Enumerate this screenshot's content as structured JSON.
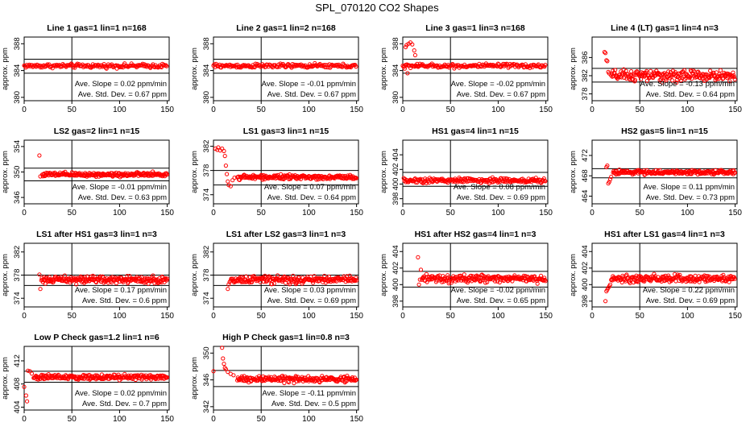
{
  "figure": {
    "title": "SPL_070120  CO2 Shapes"
  },
  "chart_data": [
    {
      "type": "scatter",
      "title": "Line 1 gas=1 lin=1 n=168",
      "ylabel": "approx. ppm",
      "xlim": [
        0,
        152
      ],
      "xticks": [
        0,
        50,
        100,
        150
      ],
      "ylim": [
        379.5,
        389
      ],
      "yticks": [
        380,
        384,
        388
      ],
      "hlines": [
        385.7,
        383.6
      ],
      "vline": 50,
      "start": 0,
      "end": 150,
      "step": 0.9,
      "base": 384.7,
      "noise": 0.15,
      "init": [],
      "slope_text": "Ave. Slope = 0.02  ppm/min",
      "std_text": "Ave. Std. Dev. = 0.67 ppm"
    },
    {
      "type": "scatter",
      "title": "Line 2 gas=1 lin=2 n=168",
      "ylabel": "approx. ppm",
      "xlim": [
        0,
        152
      ],
      "xticks": [
        0,
        50,
        100,
        150
      ],
      "ylim": [
        379.5,
        389
      ],
      "yticks": [
        380,
        384,
        388
      ],
      "hlines": [
        385.7,
        383.6
      ],
      "vline": 50,
      "start": 0,
      "end": 150,
      "step": 0.9,
      "base": 384.7,
      "noise": 0.15,
      "init": [],
      "slope_text": "Ave. Slope = -0.01  ppm/min",
      "std_text": "Ave. Std. Dev. = 0.67 ppm"
    },
    {
      "type": "scatter",
      "title": "Line 3 gas=1 lin=3 n=168",
      "ylabel": "approx. ppm",
      "xlim": [
        0,
        152
      ],
      "xticks": [
        0,
        50,
        100,
        150
      ],
      "ylim": [
        379.5,
        389
      ],
      "yticks": [
        380,
        384,
        388
      ],
      "hlines": [
        385.7,
        383.6
      ],
      "vline": 50,
      "start": 0,
      "end": 150,
      "step": 0.9,
      "base": 384.7,
      "noise": 0.15,
      "init": [
        [
          2,
          384.3
        ],
        [
          3,
          387.5
        ],
        [
          4,
          387.8
        ],
        [
          5,
          383.6
        ],
        [
          6,
          388.0
        ],
        [
          8,
          388.2
        ],
        [
          10,
          387.9
        ],
        [
          12,
          387.0
        ],
        [
          13,
          386.3
        ],
        [
          15,
          385.0
        ]
      ],
      "slope_text": "Ave. Slope = -0.02  ppm/min",
      "std_text": "Ave. Std. Dev. = 0.67 ppm"
    },
    {
      "type": "scatter",
      "title": "Line 4 (LT) gas=1 lin=4 n=3",
      "ylabel": "approx. ppm",
      "xlim": [
        0,
        152
      ],
      "xticks": [
        0,
        50,
        100,
        150
      ],
      "ylim": [
        376.5,
        390.5
      ],
      "yticks": [
        378,
        382,
        386
      ],
      "hlines": [
        383.6,
        380.6
      ],
      "vline": 50,
      "start": 20,
      "end": 150,
      "step": 0.6,
      "base": 382.0,
      "noise": 0.6,
      "init": [
        [
          13,
          387.2
        ],
        [
          14,
          387.0
        ],
        [
          15,
          385.4
        ],
        [
          16,
          385.2
        ],
        [
          17,
          382.8
        ],
        [
          18,
          382.5
        ]
      ],
      "slope_text": "Ave. Slope = -0.13  ppm/min",
      "std_text": "Ave. Std. Dev. = 0.64 ppm"
    },
    {
      "type": "scatter",
      "title": "LS2 gas=2 lin=1 n=15",
      "ylabel": "approx. ppm",
      "xlim": [
        0,
        152
      ],
      "xticks": [
        0,
        50,
        100,
        150
      ],
      "ylim": [
        345,
        355
      ],
      "yticks": [
        346,
        350,
        354
      ],
      "hlines": [
        350.6,
        348.6
      ],
      "vline": 50,
      "start": 19,
      "end": 150,
      "step": 0.6,
      "base": 349.6,
      "noise": 0.17,
      "init": [
        [
          16,
          352.6
        ],
        [
          17,
          349.3
        ]
      ],
      "slope_text": "Ave. Slope = -0.01  ppm/min",
      "std_text": "Ave. Std. Dev. = 0.63 ppm"
    },
    {
      "type": "scatter",
      "title": "LS1 gas=3 lin=1 n=15",
      "ylabel": "approx. ppm",
      "xlim": [
        0,
        152
      ],
      "xticks": [
        0,
        50,
        100,
        150
      ],
      "ylim": [
        372.5,
        383
      ],
      "yticks": [
        374,
        378,
        382
      ],
      "hlines": [
        378.0,
        375.6
      ],
      "vline": 50,
      "start": 25,
      "end": 150,
      "step": 0.6,
      "base": 376.9,
      "noise": 0.18,
      "init": [
        [
          2,
          381.6
        ],
        [
          4,
          381.4
        ],
        [
          5,
          381.8
        ],
        [
          7,
          381.3
        ],
        [
          9,
          381.6
        ],
        [
          11,
          381.2
        ],
        [
          12,
          380.4
        ],
        [
          13,
          378.8
        ],
        [
          14,
          377.4
        ],
        [
          15,
          376.2
        ],
        [
          16,
          375.6
        ],
        [
          18,
          375.4
        ],
        [
          20,
          376.4
        ],
        [
          22,
          376.8
        ]
      ],
      "slope_text": "Ave. Slope = 0.07  ppm/min",
      "std_text": "Ave. Std. Dev. = 0.64 ppm"
    },
    {
      "type": "scatter",
      "title": "HS1 gas=4 lin=1 n=15",
      "ylabel": "approx. ppm",
      "xlim": [
        0,
        152
      ],
      "xticks": [
        0,
        50,
        100,
        150
      ],
      "ylim": [
        397.3,
        406
      ],
      "yticks": [
        398,
        400,
        402,
        404
      ],
      "hlines": [
        401.6,
        399.7
      ],
      "vline": 50,
      "start": 1,
      "end": 150,
      "step": 0.7,
      "base": 400.5,
      "noise": 0.17,
      "init": [],
      "slope_text": "Ave. Slope = 0.08  ppm/min",
      "std_text": "Ave. Std. Dev. = 0.69 ppm"
    },
    {
      "type": "scatter",
      "title": "HS2 gas=5 lin=1 n=15",
      "ylabel": "approx. ppm",
      "xlim": [
        0,
        152
      ],
      "xticks": [
        0,
        50,
        100,
        150
      ],
      "ylim": [
        462.5,
        475
      ],
      "yticks": [
        464,
        468,
        472
      ],
      "hlines": [
        469.4,
        467.6
      ],
      "vline": 50,
      "start": 22,
      "end": 150,
      "step": 0.6,
      "base": 468.7,
      "noise": 0.2,
      "init": [
        [
          15,
          469.7
        ],
        [
          16,
          470.0
        ],
        [
          17,
          466.5
        ],
        [
          18,
          466.8
        ],
        [
          19,
          467.3
        ],
        [
          20,
          467.8
        ]
      ],
      "slope_text": "Ave. Slope = 0.11  ppm/min",
      "std_text": "Ave. Std. Dev. = 0.73 ppm"
    },
    {
      "type": "scatter",
      "title": "LS1 after HS1 gas=3 lin=1 n=3",
      "ylabel": "approx. ppm",
      "xlim": [
        0,
        152
      ],
      "xticks": [
        0,
        50,
        100,
        150
      ],
      "ylim": [
        372.5,
        383.5
      ],
      "yticks": [
        374,
        378,
        382
      ],
      "hlines": [
        378.0,
        376.2
      ],
      "vline": 50,
      "start": 18,
      "end": 150,
      "step": 0.6,
      "base": 377.2,
      "noise": 0.3,
      "init": [
        [
          16,
          378.1
        ],
        [
          17,
          375.6
        ]
      ],
      "slope_text": "Ave. Slope = 0.17  ppm/min",
      "std_text": "Ave. Std. Dev. = 0.6 ppm"
    },
    {
      "type": "scatter",
      "title": "LS1 after LS2 gas=3 lin=1 n=3",
      "ylabel": "approx. ppm",
      "xlim": [
        0,
        152
      ],
      "xticks": [
        0,
        50,
        100,
        150
      ],
      "ylim": [
        372.5,
        383.5
      ],
      "yticks": [
        374,
        378,
        382
      ],
      "hlines": [
        378.0,
        376.2
      ],
      "vline": 50,
      "start": 18,
      "end": 150,
      "step": 0.6,
      "base": 377.2,
      "noise": 0.3,
      "init": [
        [
          15,
          375.6
        ],
        [
          16,
          376.4
        ],
        [
          17,
          376.8
        ]
      ],
      "slope_text": "Ave. Slope = 0.03  ppm/min",
      "std_text": "Ave. Std. Dev. = 0.69 ppm"
    },
    {
      "type": "scatter",
      "title": "HS1 after HS2 gas=4 lin=1 n=3",
      "ylabel": "approx. ppm",
      "xlim": [
        0,
        152
      ],
      "xticks": [
        0,
        50,
        100,
        150
      ],
      "ylim": [
        397.3,
        405
      ],
      "yticks": [
        398,
        400,
        402,
        404
      ],
      "hlines": [
        401.6,
        399.7
      ],
      "vline": 50,
      "start": 20,
      "end": 150,
      "step": 0.6,
      "base": 400.7,
      "noise": 0.22,
      "init": [
        [
          16,
          403.3
        ],
        [
          17,
          400.0
        ],
        [
          18,
          400.6
        ],
        [
          19,
          401.8
        ]
      ],
      "slope_text": "Ave. Slope = -0.02  ppm/min",
      "std_text": "Ave. Std. Dev. = 0.65 ppm"
    },
    {
      "type": "scatter",
      "title": "HS1 after LS1 gas=4 lin=1 n=3",
      "ylabel": "approx. ppm",
      "xlim": [
        0,
        152
      ],
      "xticks": [
        0,
        50,
        100,
        150
      ],
      "ylim": [
        397.3,
        405
      ],
      "yticks": [
        398,
        400,
        402,
        404
      ],
      "hlines": [
        401.6,
        399.7
      ],
      "vline": 50,
      "start": 20,
      "end": 150,
      "step": 0.6,
      "base": 400.7,
      "noise": 0.22,
      "init": [
        [
          14,
          398.0
        ],
        [
          15,
          399.2
        ],
        [
          16,
          399.4
        ],
        [
          17,
          399.6
        ],
        [
          18,
          399.8
        ],
        [
          19,
          400.0
        ]
      ],
      "slope_text": "Ave. Slope = 0.22  ppm/min",
      "std_text": "Ave. Std. Dev. = 0.69 ppm"
    },
    {
      "type": "scatter",
      "title": "Low P Check gas=1.2 lin=1 n=6",
      "ylabel": "approx. ppm",
      "xlim": [
        0,
        152
      ],
      "xticks": [
        0,
        50,
        100,
        150
      ],
      "ylim": [
        403.5,
        414.5
      ],
      "yticks": [
        404,
        408,
        412
      ],
      "hlines": [
        410.2,
        408.3
      ],
      "vline": 50,
      "start": 10,
      "end": 150,
      "step": 0.6,
      "base": 409.2,
      "noise": 0.22,
      "init": [
        [
          0,
          407.5
        ],
        [
          2,
          406.0
        ],
        [
          3,
          405.0
        ],
        [
          4,
          410.3
        ],
        [
          6,
          410.2
        ],
        [
          8,
          409.8
        ]
      ],
      "slope_text": "Ave. Slope = 0.02  ppm/min",
      "std_text": "Ave. Std. Dev. = 0.7 ppm"
    },
    {
      "type": "scatter",
      "title": "High P Check gas=1 lin=0.8 n=3",
      "ylabel": "approx. ppm",
      "xlim": [
        0,
        152
      ],
      "xticks": [
        0,
        50,
        100,
        150
      ],
      "ylim": [
        341.5,
        351
      ],
      "yticks": [
        342,
        346,
        350
      ],
      "hlines": [
        347.4,
        345.0
      ],
      "vline": 50,
      "start": 25,
      "end": 150,
      "step": 0.6,
      "base": 346.1,
      "noise": 0.22,
      "init": [
        [
          0,
          347.3
        ],
        [
          9,
          350.8
        ],
        [
          10,
          349.2
        ],
        [
          11,
          348.4
        ],
        [
          12,
          347.8
        ],
        [
          13,
          347.6
        ],
        [
          15,
          347.2
        ],
        [
          18,
          346.9
        ],
        [
          21,
          346.7
        ]
      ],
      "slope_text": "Ave. Slope = -0.11  ppm/min",
      "std_text": "Ave. Std. Dev. = 0.5 ppm"
    }
  ]
}
